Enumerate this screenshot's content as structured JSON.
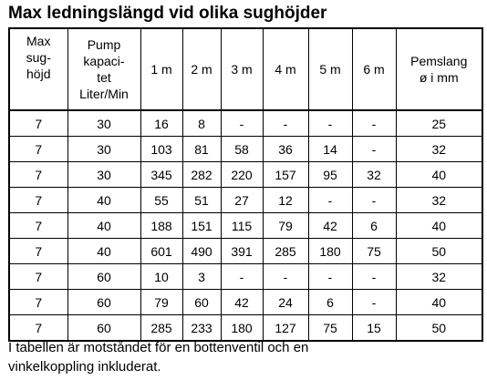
{
  "title": "Max ledningslängd vid olika sughöjder",
  "table": {
    "header": [
      [
        "Max",
        "sug-",
        "höjd"
      ],
      [
        "Pump",
        "kapaci-",
        "tet",
        "Liter/Min"
      ],
      [
        "1 m"
      ],
      [
        "2 m"
      ],
      [
        "3 m"
      ],
      [
        "4 m"
      ],
      [
        "5 m"
      ],
      [
        "6 m"
      ],
      [
        "Pemslang",
        "ø i mm"
      ]
    ],
    "rows": [
      [
        7,
        30,
        16,
        8,
        "-",
        "-",
        "-",
        "-",
        25
      ],
      [
        7,
        30,
        103,
        81,
        58,
        36,
        14,
        "-",
        32
      ],
      [
        7,
        30,
        345,
        282,
        220,
        157,
        95,
        32,
        40
      ],
      [
        7,
        40,
        55,
        51,
        27,
        12,
        "-",
        "-",
        32
      ],
      [
        7,
        40,
        188,
        151,
        115,
        79,
        42,
        6,
        40
      ],
      [
        7,
        40,
        601,
        490,
        391,
        285,
        180,
        75,
        50
      ],
      [
        7,
        60,
        10,
        3,
        "-",
        "-",
        "-",
        "-",
        32
      ],
      [
        7,
        60,
        79,
        60,
        42,
        24,
        6,
        "-",
        40
      ],
      [
        7,
        60,
        285,
        233,
        180,
        127,
        75,
        15,
        50
      ]
    ]
  },
  "footnote": [
    "I tabellen är motståndet för en bottenventil och en",
    "vinkelkoppling inkluderat."
  ]
}
